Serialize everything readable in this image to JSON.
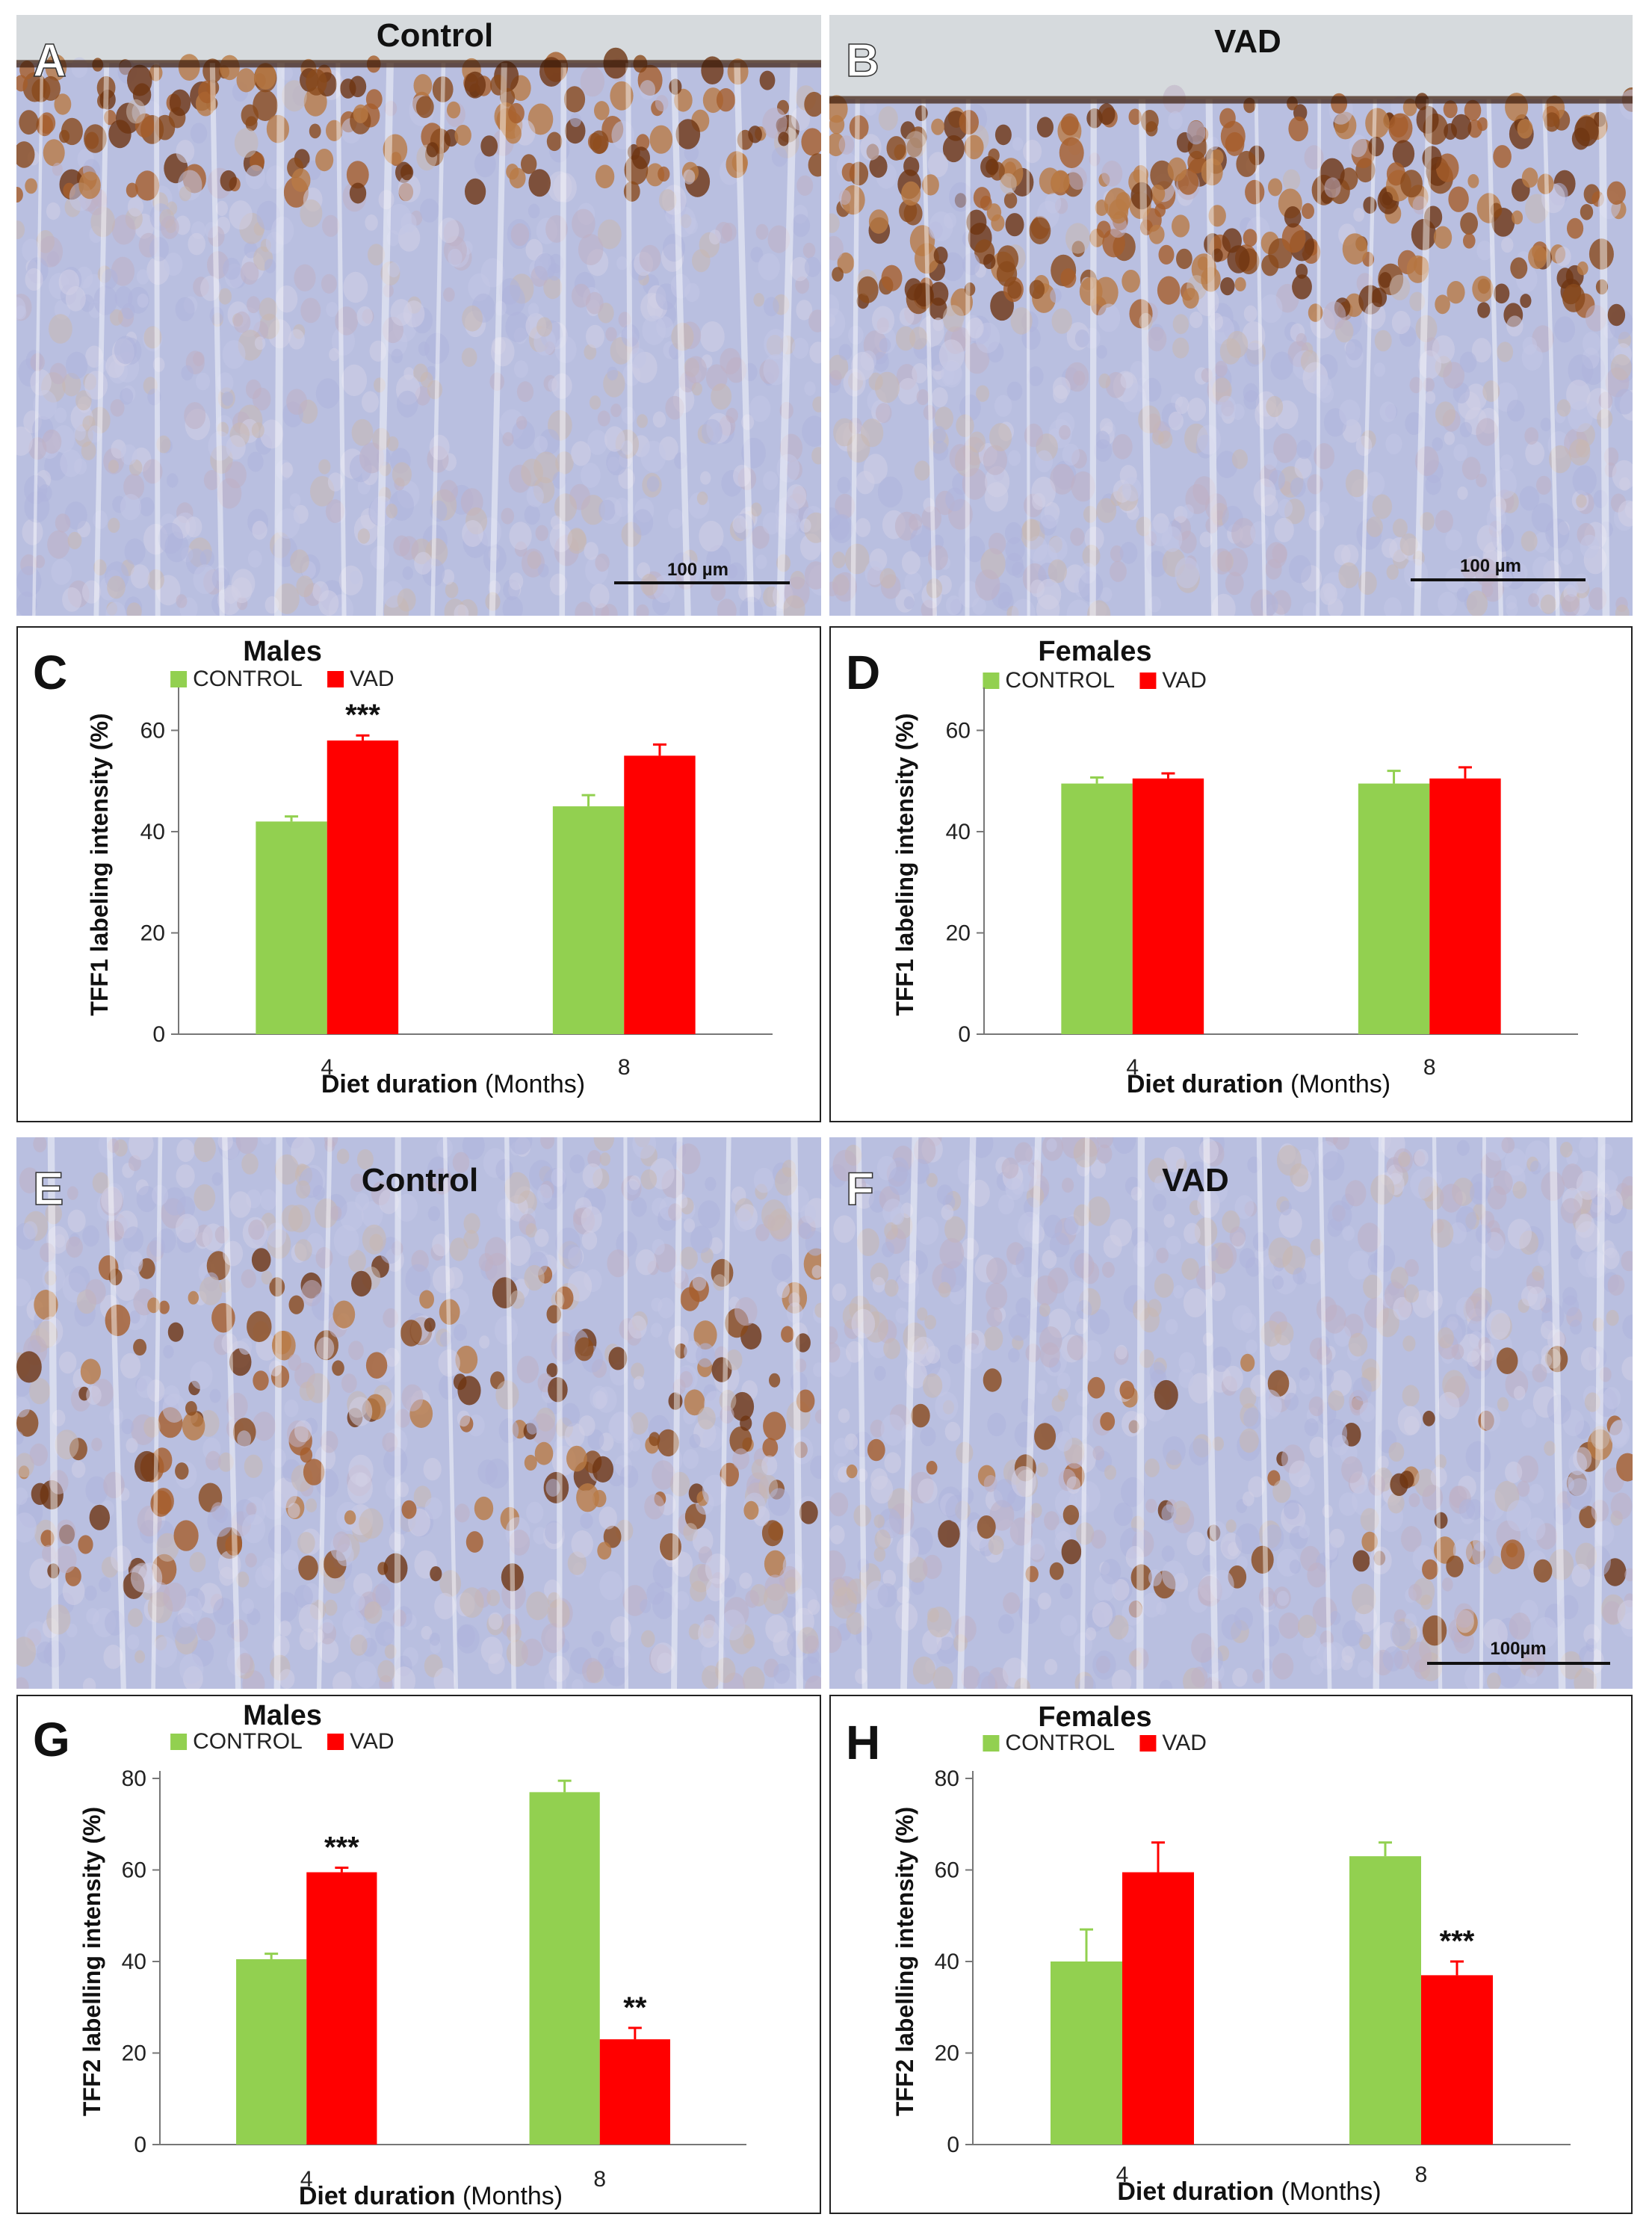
{
  "colors": {
    "control": "#92d050",
    "vad": "#ff0000",
    "stain_brown": "#8a4a1c",
    "tissue_blue": "#b9bfe0",
    "background_glass": "#d6dadd"
  },
  "images": [
    {
      "letter": "A",
      "title": "Control",
      "scale_bar": "100 µm",
      "stain": "TFF1"
    },
    {
      "letter": "B",
      "title": "VAD",
      "scale_bar": "100 µm",
      "stain": "TFF1"
    },
    {
      "letter": "E",
      "title": "Control",
      "scale_bar": "",
      "stain": "TFF2"
    },
    {
      "letter": "F",
      "title": "VAD",
      "scale_bar": "100µm",
      "stain": "TFF2"
    }
  ],
  "chart_data": [
    {
      "letter": "C",
      "type": "bar",
      "title": "Males",
      "xlabel_bold": "Diet duration",
      "xlabel_rest": " (Months)",
      "ylabel": "TFF1 labeling intensity (%)",
      "categories": [
        "4",
        "8"
      ],
      "ylim": [
        0,
        67
      ],
      "yticks": [
        0,
        20,
        40,
        60
      ],
      "series": [
        {
          "name": "CONTROL",
          "values": [
            42,
            45
          ],
          "errors": [
            1,
            2.2
          ],
          "sig": [
            "",
            ""
          ]
        },
        {
          "name": "VAD",
          "values": [
            58,
            55
          ],
          "errors": [
            1,
            2.2
          ],
          "sig": [
            "***",
            ""
          ]
        }
      ],
      "legend": "top-center",
      "grid": false
    },
    {
      "letter": "D",
      "type": "bar",
      "title": "Females",
      "xlabel_bold": "Diet duration",
      "xlabel_rest": " (Months)",
      "ylabel": "TFF1 labeling intensity (%)",
      "categories": [
        "4",
        "8"
      ],
      "ylim": [
        0,
        67
      ],
      "yticks": [
        0,
        20,
        40,
        60
      ],
      "series": [
        {
          "name": "CONTROL",
          "values": [
            49.5,
            49.5
          ],
          "errors": [
            1.2,
            2.5
          ],
          "sig": [
            "",
            ""
          ]
        },
        {
          "name": "VAD",
          "values": [
            50.5,
            50.5
          ],
          "errors": [
            1,
            2.2
          ],
          "sig": [
            "",
            ""
          ]
        }
      ],
      "legend": "top-center",
      "grid": false
    },
    {
      "letter": "G",
      "type": "bar",
      "title": "Males",
      "xlabel_bold": "Diet duration",
      "xlabel_rest": " (Months)",
      "ylabel": "TFF2 labelling intensity (%)",
      "categories": [
        "4",
        "8"
      ],
      "ylim": [
        0,
        80
      ],
      "yticks": [
        0,
        20,
        40,
        60,
        80
      ],
      "series": [
        {
          "name": "CONTROL",
          "values": [
            40.5,
            77
          ],
          "errors": [
            1.2,
            2.5
          ],
          "sig": [
            "",
            ""
          ]
        },
        {
          "name": "VAD",
          "values": [
            59.5,
            23
          ],
          "errors": [
            1,
            2.5
          ],
          "sig": [
            "***",
            "**"
          ]
        }
      ],
      "legend": "top-center",
      "grid": false
    },
    {
      "letter": "H",
      "type": "bar",
      "title": "Females",
      "xlabel_bold": "Diet duration",
      "xlabel_rest": " (Months)",
      "ylabel": "TFF2 labelling intensity (%)",
      "categories": [
        "4",
        "8"
      ],
      "ylim": [
        0,
        80
      ],
      "yticks": [
        0,
        20,
        40,
        60,
        80
      ],
      "series": [
        {
          "name": "CONTROL",
          "values": [
            40,
            63
          ],
          "errors": [
            7,
            3
          ],
          "sig": [
            "",
            ""
          ]
        },
        {
          "name": "VAD",
          "values": [
            59.5,
            37
          ],
          "errors": [
            6.5,
            3
          ],
          "sig": [
            "",
            "***"
          ]
        }
      ],
      "legend": "top-center",
      "grid": false
    }
  ]
}
